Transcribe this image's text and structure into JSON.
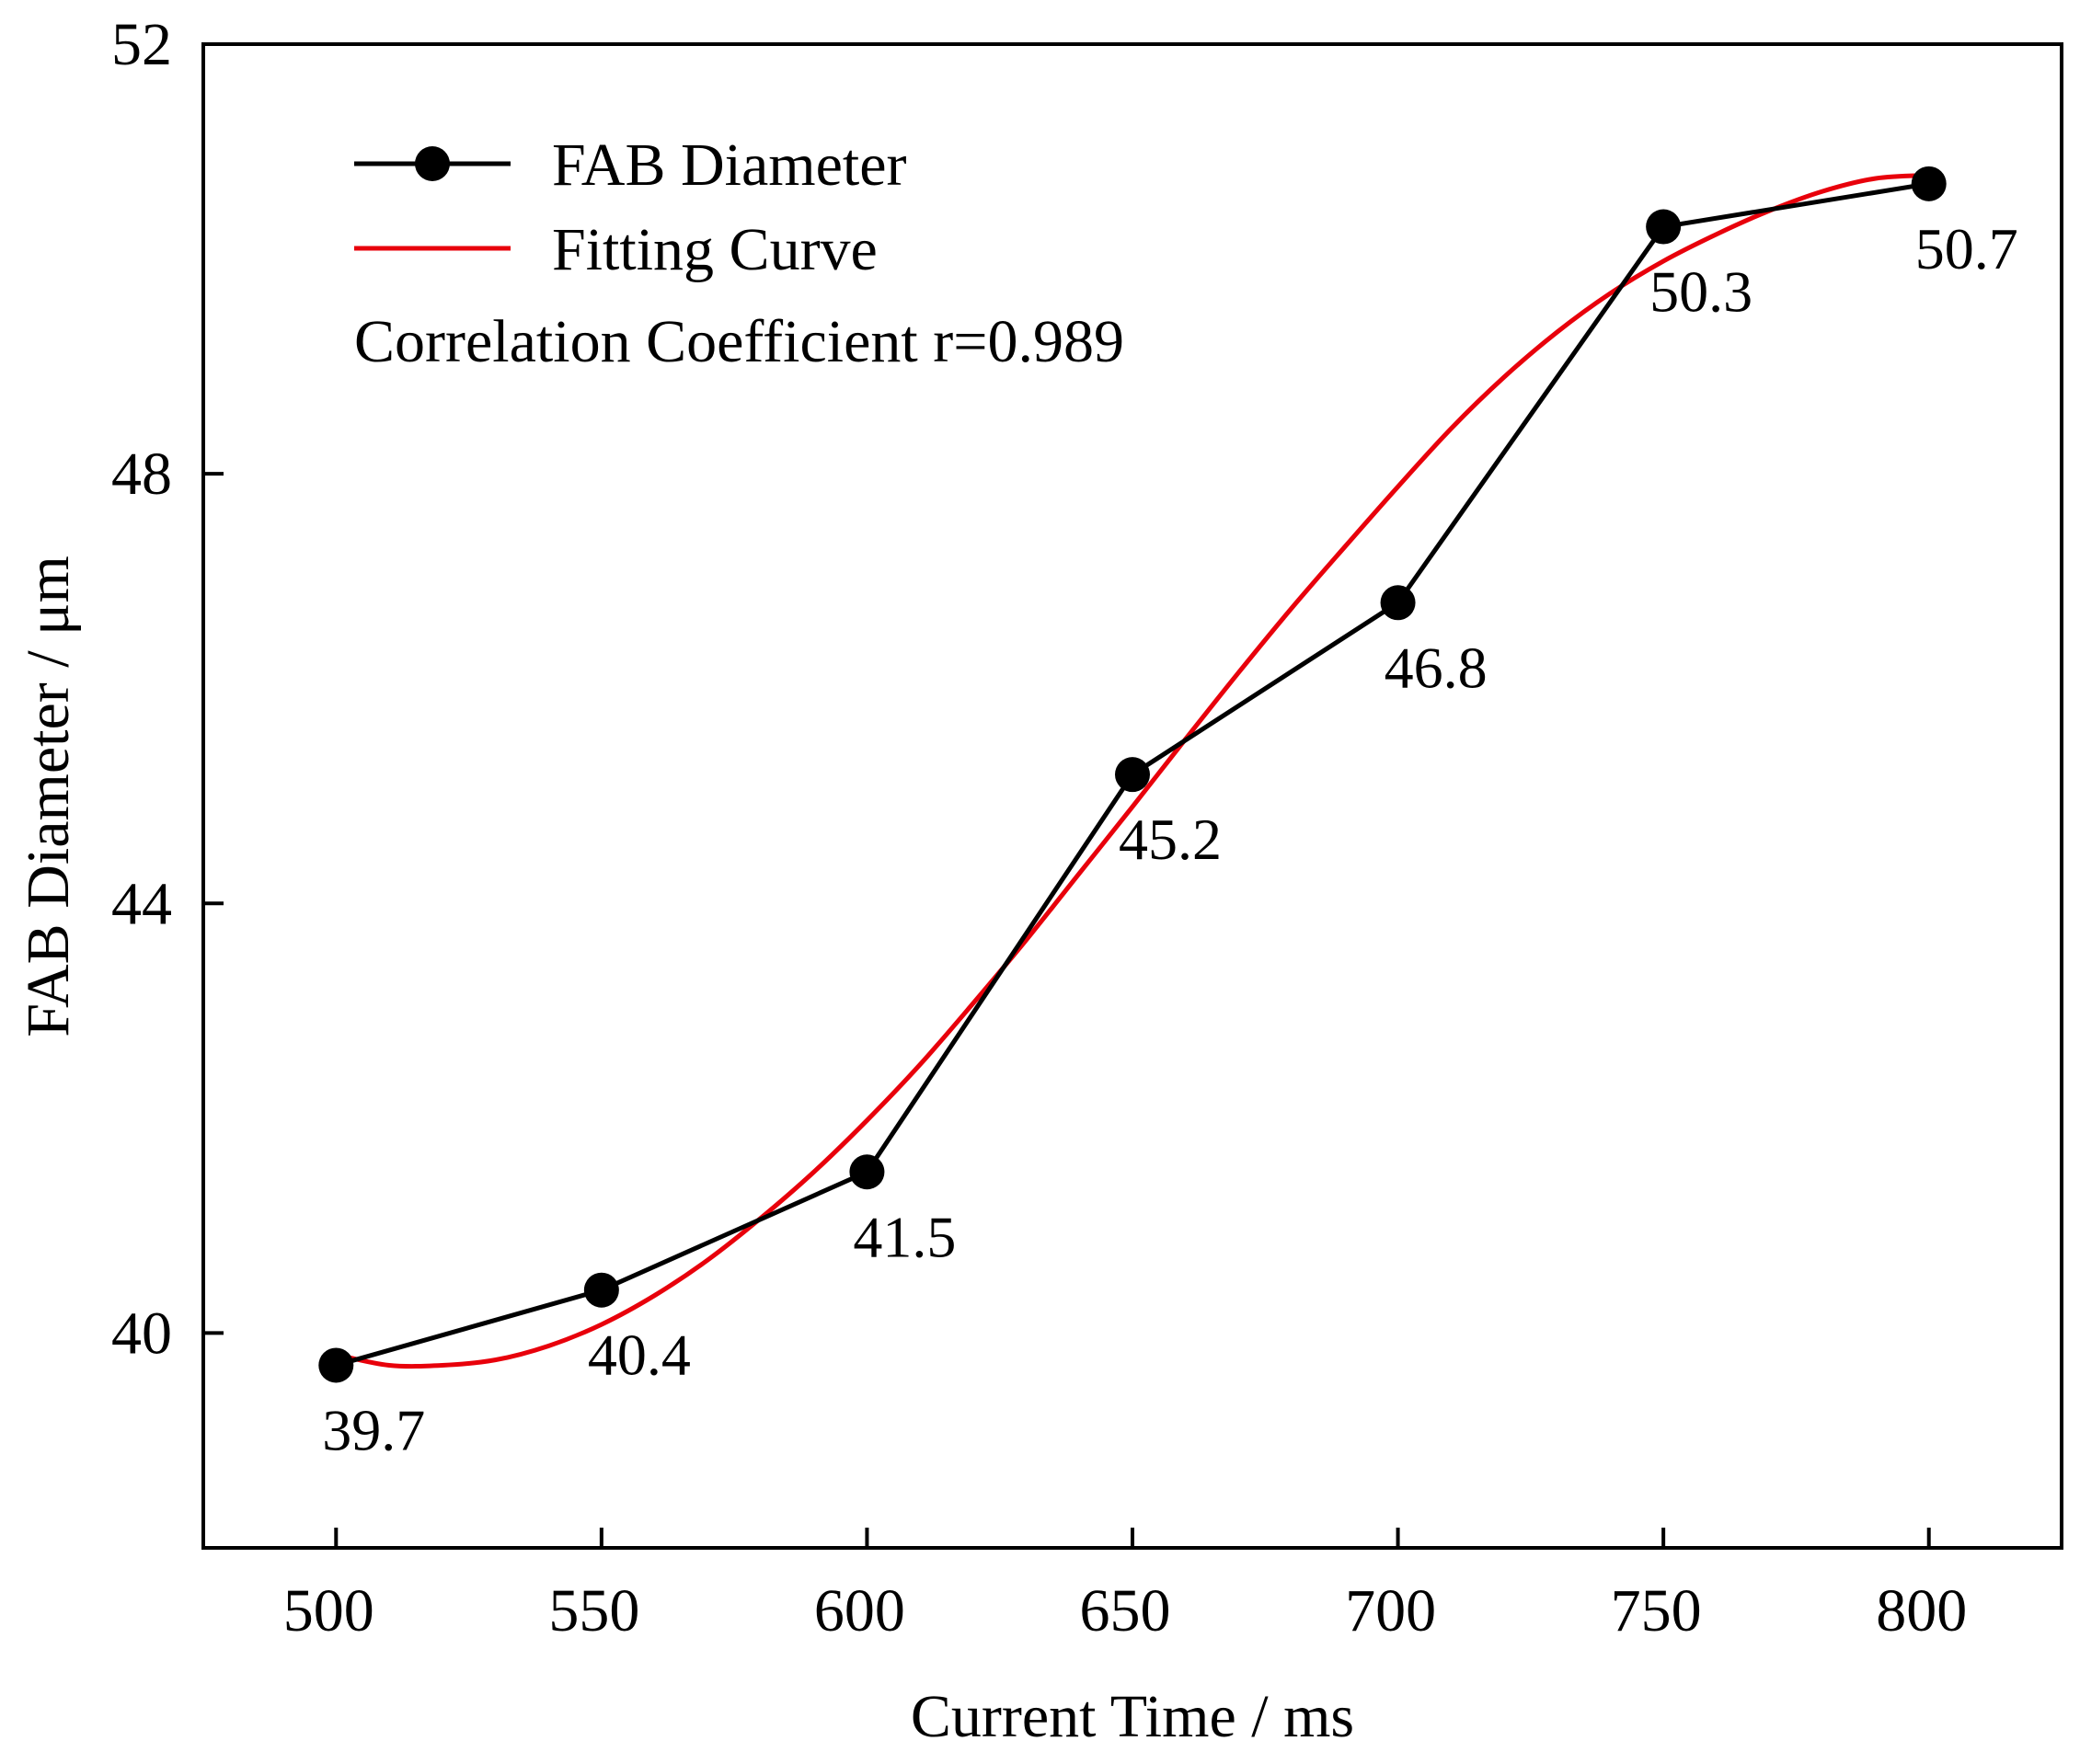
{
  "chart_data": {
    "type": "line",
    "title": "",
    "xlabel": "Current Time / ms",
    "ylabel": "FAB Diameter / μm",
    "xlim": [
      475,
      825
    ],
    "ylim": [
      38,
      52
    ],
    "x_ticks": [
      500,
      550,
      600,
      650,
      700,
      750,
      800
    ],
    "y_ticks": [
      40,
      44,
      48,
      52
    ],
    "grid": false,
    "legend_position": "top-left",
    "series": [
      {
        "name": "FAB Diameter",
        "kind": "line-marker",
        "color": "#000000",
        "x": [
          500,
          550,
          600,
          650,
          700,
          750,
          800
        ],
        "values": [
          39.7,
          40.4,
          41.5,
          45.2,
          46.8,
          50.3,
          50.7
        ],
        "labels": [
          "39.7",
          "40.4",
          "41.5",
          "45.2",
          "46.8",
          "50.3",
          "50.7"
        ]
      },
      {
        "name": "Fitting Curve",
        "kind": "smooth-line",
        "color": "#e8000b",
        "x": [
          500,
          510,
          520,
          530,
          540,
          550,
          560,
          570,
          580,
          590,
          600,
          610,
          620,
          630,
          640,
          650,
          660,
          670,
          680,
          690,
          700,
          710,
          720,
          730,
          740,
          750,
          760,
          770,
          780,
          790,
          800
        ],
        "values": [
          39.8,
          39.7,
          39.7,
          39.75,
          39.88,
          40.08,
          40.35,
          40.68,
          41.07,
          41.5,
          41.98,
          42.5,
          43.07,
          43.66,
          44.28,
          44.9,
          45.53,
          46.15,
          46.75,
          47.32,
          47.88,
          48.42,
          48.9,
          49.32,
          49.68,
          49.98,
          50.23,
          50.45,
          50.63,
          50.75,
          50.78
        ]
      }
    ],
    "annotations": [
      "Correlation Coefficient r=0.989"
    ]
  },
  "colors": {
    "axis": "#000000",
    "data_line": "#000000",
    "fit_line": "#e8000b"
  }
}
